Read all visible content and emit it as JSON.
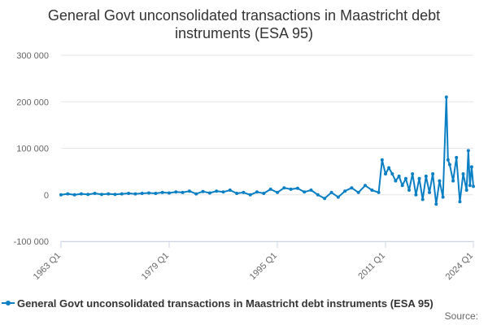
{
  "title_line1": "General Govt unconsolidated transactions in Maastricht debt",
  "title_line2": "instruments (ESA 95)",
  "legend_label": "General Govt unconsolidated transactions in Maastricht debt instruments (ESA 95)",
  "source_label": "Source:",
  "colors": {
    "series": "#0a7fc4",
    "grid": "#e6e6e6",
    "axis": "#ccd6eb"
  },
  "chart_data": {
    "type": "line",
    "title": "General Govt unconsolidated transactions in Maastricht debt instruments (ESA 95)",
    "xlabel": "",
    "ylabel": "",
    "x_tick_labels": [
      "1963 Q1",
      "1979 Q1",
      "1995 Q1",
      "2011 Q1",
      "2024 Q1"
    ],
    "y_ticks": [
      -100000,
      0,
      100000,
      200000,
      300000
    ],
    "y_tick_labels": [
      "-100 000",
      "0",
      "100 000",
      "200 000",
      "300 000"
    ],
    "ylim": [
      -100000,
      300000
    ],
    "xlim": [
      "1963 Q1",
      "2024 Q1"
    ],
    "grid": "horizontal",
    "legend": "bottom",
    "series": [
      {
        "name": "General Govt unconsolidated transactions in Maastricht debt instruments (ESA 95)",
        "points": [
          [
            "1963 Q1",
            0
          ],
          [
            "1964 Q1",
            2000
          ],
          [
            "1965 Q1",
            0
          ],
          [
            "1966 Q1",
            2000
          ],
          [
            "1967 Q1",
            1000
          ],
          [
            "1968 Q1",
            3000
          ],
          [
            "1969 Q1",
            1000
          ],
          [
            "1970 Q1",
            2000
          ],
          [
            "1971 Q1",
            1000
          ],
          [
            "1972 Q1",
            2000
          ],
          [
            "1973 Q1",
            3000
          ],
          [
            "1974 Q1",
            2000
          ],
          [
            "1975 Q1",
            3000
          ],
          [
            "1976 Q1",
            4000
          ],
          [
            "1977 Q1",
            3000
          ],
          [
            "1978 Q1",
            5000
          ],
          [
            "1979 Q1",
            4000
          ],
          [
            "1980 Q1",
            6000
          ],
          [
            "1981 Q1",
            5000
          ],
          [
            "1982 Q1",
            8000
          ],
          [
            "1983 Q1",
            2000
          ],
          [
            "1984 Q1",
            7000
          ],
          [
            "1985 Q1",
            4000
          ],
          [
            "1986 Q1",
            8000
          ],
          [
            "1987 Q1",
            6000
          ],
          [
            "1988 Q1",
            10000
          ],
          [
            "1989 Q1",
            3000
          ],
          [
            "1990 Q1",
            5000
          ],
          [
            "1991 Q1",
            0
          ],
          [
            "1992 Q1",
            6000
          ],
          [
            "1993 Q1",
            3000
          ],
          [
            "1994 Q1",
            12000
          ],
          [
            "1995 Q1",
            5000
          ],
          [
            "1996 Q1",
            15000
          ],
          [
            "1997 Q1",
            12000
          ],
          [
            "1998 Q1",
            14000
          ],
          [
            "1999 Q1",
            6000
          ],
          [
            "2000 Q1",
            10000
          ],
          [
            "2001 Q1",
            0
          ],
          [
            "2002 Q1",
            -8000
          ],
          [
            "2003 Q1",
            5000
          ],
          [
            "2004 Q1",
            -5000
          ],
          [
            "2005 Q1",
            8000
          ],
          [
            "2006 Q1",
            15000
          ],
          [
            "2007 Q1",
            5000
          ],
          [
            "2008 Q1",
            20000
          ],
          [
            "2009 Q1",
            10000
          ],
          [
            "2010 Q1",
            5000
          ],
          [
            "2010 Q3",
            75000
          ],
          [
            "2011 Q1",
            45000
          ],
          [
            "2011 Q3",
            58000
          ],
          [
            "2012 Q1",
            45000
          ],
          [
            "2012 Q3",
            30000
          ],
          [
            "2013 Q1",
            40000
          ],
          [
            "2013 Q3",
            20000
          ],
          [
            "2014 Q1",
            35000
          ],
          [
            "2014 Q3",
            10000
          ],
          [
            "2015 Q1",
            45000
          ],
          [
            "2015 Q3",
            0
          ],
          [
            "2016 Q1",
            35000
          ],
          [
            "2016 Q3",
            -10000
          ],
          [
            "2017 Q1",
            40000
          ],
          [
            "2017 Q3",
            5000
          ],
          [
            "2018 Q1",
            45000
          ],
          [
            "2018 Q3",
            -20000
          ],
          [
            "2019 Q1",
            30000
          ],
          [
            "2019 Q3",
            -5000
          ],
          [
            "2020 Q1",
            210000
          ],
          [
            "2020 Q2",
            75000
          ],
          [
            "2020 Q3",
            65000
          ],
          [
            "2021 Q1",
            30000
          ],
          [
            "2021 Q3",
            80000
          ],
          [
            "2022 Q1",
            -15000
          ],
          [
            "2022 Q3",
            45000
          ],
          [
            "2023 Q1",
            10000
          ],
          [
            "2023 Q2",
            95000
          ],
          [
            "2023 Q3",
            20000
          ],
          [
            "2023 Q4",
            60000
          ],
          [
            "2024 Q1",
            18000
          ]
        ]
      }
    ]
  }
}
